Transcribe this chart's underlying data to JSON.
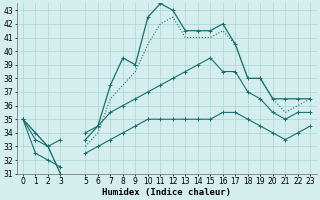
{
  "xlabel": "Humidex (Indice chaleur)",
  "xlim": [
    -0.5,
    23.5
  ],
  "ylim": [
    31,
    43.5
  ],
  "yticks": [
    31,
    32,
    33,
    34,
    35,
    36,
    37,
    38,
    39,
    40,
    41,
    42,
    43
  ],
  "xticks": [
    0,
    1,
    2,
    3,
    5,
    6,
    7,
    8,
    9,
    10,
    11,
    12,
    13,
    14,
    15,
    16,
    17,
    18,
    19,
    20,
    21,
    22,
    23
  ],
  "bg_color": "#d4eeee",
  "grid_color": "#aad4d4",
  "line_color": "#1a6e6e",
  "lines": [
    {
      "y": [
        35.0,
        34.0,
        33.0,
        31.0,
        null,
        33.5,
        34.5,
        37.5,
        39.5,
        39.0,
        42.5,
        43.5,
        43.0,
        41.5,
        41.5,
        41.5,
        42.0,
        40.5,
        38.0,
        38.0,
        36.5,
        36.5,
        36.5,
        36.5
      ],
      "marker": true,
      "dotted": false,
      "lw": 0.9
    },
    {
      "y": [
        35.0,
        34.0,
        33.0,
        31.0,
        null,
        33.0,
        34.0,
        36.5,
        37.5,
        38.5,
        40.5,
        42.0,
        42.5,
        41.0,
        41.0,
        41.0,
        41.5,
        40.5,
        38.0,
        38.0,
        36.5,
        35.5,
        36.0,
        36.5
      ],
      "marker": false,
      "dotted": true,
      "lw": 0.8
    },
    {
      "y": [
        35.0,
        33.5,
        33.0,
        33.5,
        null,
        34.0,
        34.5,
        35.5,
        36.0,
        36.5,
        37.0,
        37.5,
        38.0,
        38.5,
        39.0,
        39.5,
        38.5,
        38.5,
        37.0,
        36.5,
        35.5,
        35.0,
        35.5,
        35.5
      ],
      "marker": true,
      "dotted": false,
      "lw": 0.8
    },
    {
      "y": [
        35.0,
        32.5,
        32.0,
        31.5,
        null,
        32.5,
        33.0,
        33.5,
        34.0,
        34.5,
        35.0,
        35.0,
        35.0,
        35.0,
        35.0,
        35.0,
        35.5,
        35.5,
        35.0,
        34.5,
        34.0,
        33.5,
        34.0,
        34.5
      ],
      "marker": true,
      "dotted": false,
      "lw": 0.8
    }
  ],
  "tick_fontsize": 5.5,
  "axis_fontsize": 6.5
}
